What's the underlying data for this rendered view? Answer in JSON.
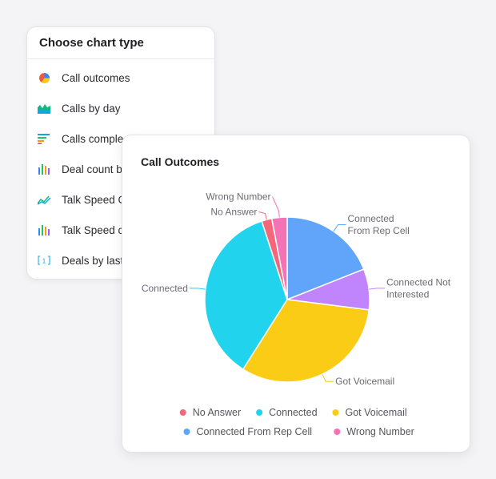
{
  "chooser": {
    "title": "Choose chart type",
    "items": [
      {
        "label": "Call outcomes",
        "icon": "pie-chart-icon"
      },
      {
        "label": "Calls by day",
        "icon": "area-chart-icon"
      },
      {
        "label": "Calls comple",
        "icon": "horizontal-bar-icon"
      },
      {
        "label": "Deal count b",
        "icon": "bar-chart-icon"
      },
      {
        "label": "Talk Speed C",
        "icon": "line-chart-icon"
      },
      {
        "label": "Talk Speed c",
        "icon": "bar-chart-icon"
      },
      {
        "label": "Deals by last",
        "icon": "number-icon"
      }
    ],
    "number_icon_text": "1"
  },
  "outcomes": {
    "title": "Call Outcomes"
  },
  "chart_data": {
    "type": "pie",
    "title": "Call Outcomes",
    "slices": [
      {
        "label": "Connected From Rep Cell",
        "value": 19,
        "color": "#60a5fa"
      },
      {
        "label": "Connected Not Interested",
        "value": 8,
        "color": "#c084fc"
      },
      {
        "label": "Got Voicemail",
        "value": 32,
        "color": "#facc15"
      },
      {
        "label": "Connected",
        "value": 36,
        "color": "#22d3ee"
      },
      {
        "label": "No Answer",
        "value": 2,
        "color": "#f4677a"
      },
      {
        "label": "Wrong Number",
        "value": 3,
        "color": "#f472b6"
      }
    ],
    "label_lines": {
      "Connected From Rep Cell": [
        "Connected",
        "From Rep Cell"
      ],
      "Connected Not Interested": [
        "Connected Not",
        "Interested"
      ],
      "Got Voicemail": [
        "Got Voicemail"
      ],
      "Connected": [
        "Connected"
      ],
      "No Answer": [
        "No Answer"
      ],
      "Wrong Number": [
        "Wrong Number"
      ]
    },
    "legend": [
      [
        "No Answer",
        "Connected",
        "Got Voicemail"
      ],
      [
        "Connected From Rep Cell",
        "Wrong Number"
      ]
    ],
    "legend_placement": "bottom"
  }
}
